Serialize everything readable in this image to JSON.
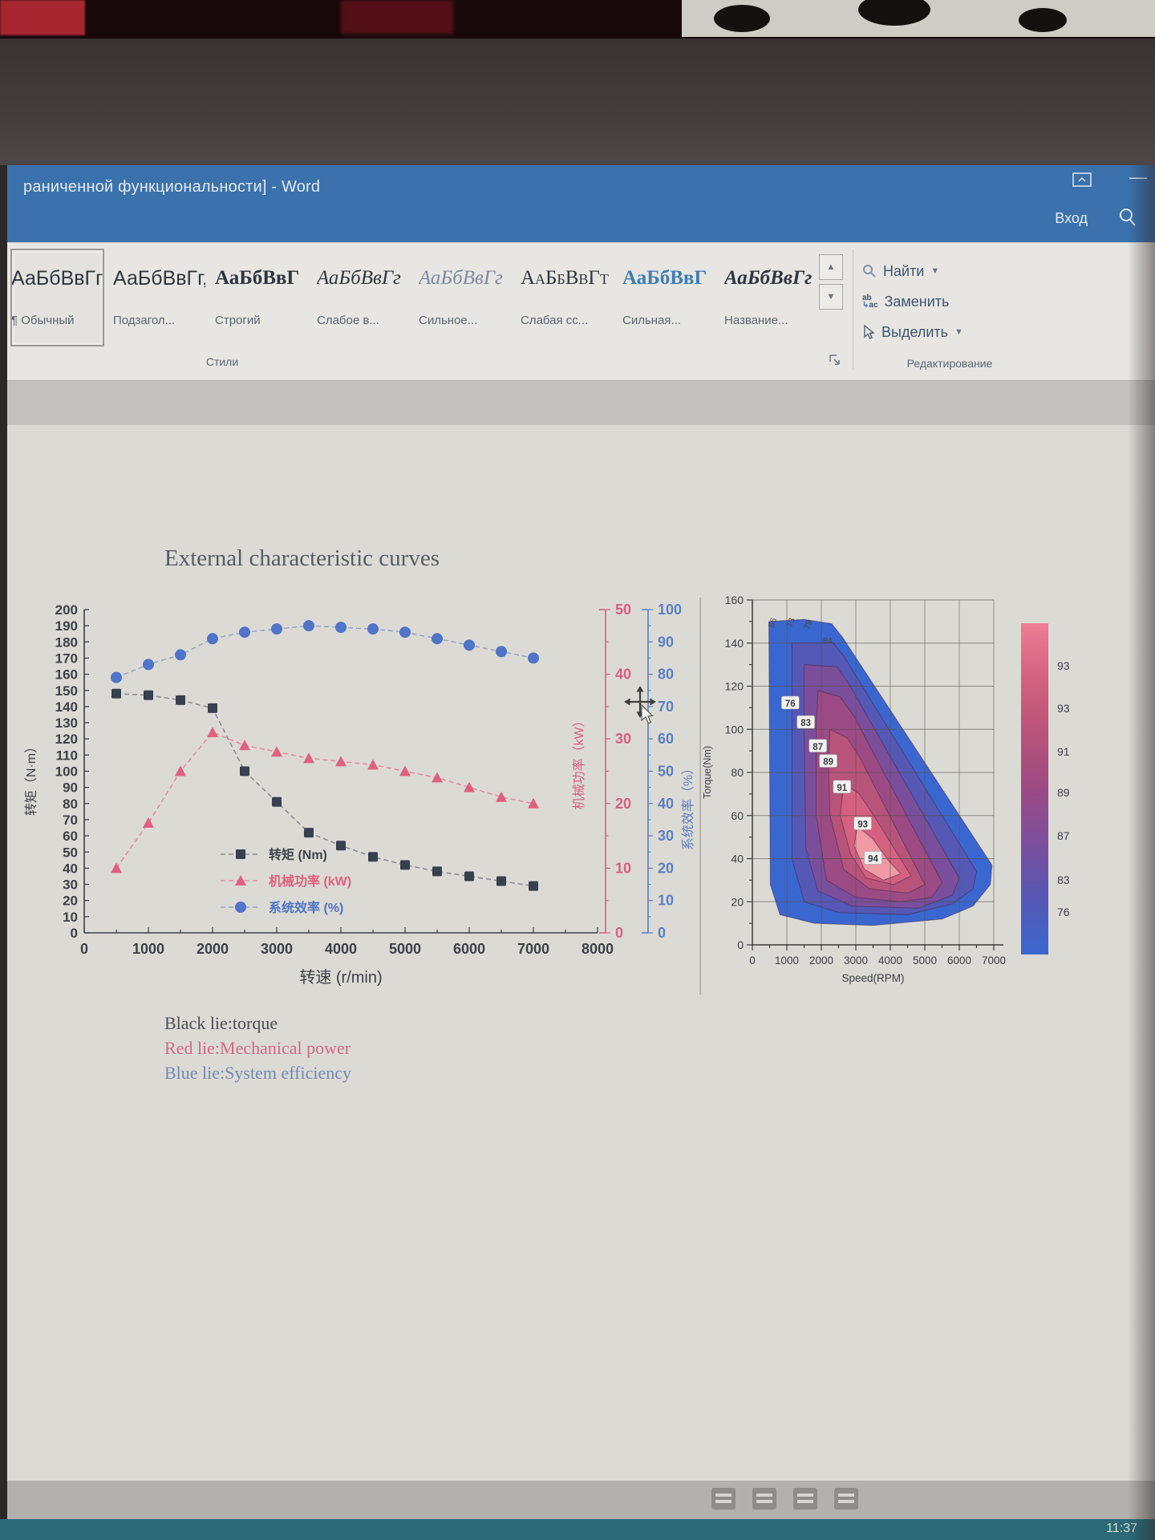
{
  "window": {
    "title": "раниченной функциональности] - Word",
    "signin_label": "Вход",
    "minimize_glyph": "—"
  },
  "ribbon": {
    "styles": {
      "group_label": "Стили",
      "items": [
        {
          "sample": "АаБбВвГг",
          "label": "¶ Обычный",
          "variant": "normal",
          "selected": true
        },
        {
          "sample": "АаБбВвГг,",
          "label": "Подзагол...",
          "variant": "normal",
          "selected": false
        },
        {
          "sample": "АаБбВвГ",
          "label": "Строгий",
          "variant": "bold-serif",
          "selected": false
        },
        {
          "sample": "АаБбВвГг",
          "label": "Слабое в...",
          "variant": "italic-serif",
          "selected": false
        },
        {
          "sample": "АаБбВвГг",
          "label": "Сильное...",
          "variant": "italic-serif-muted",
          "selected": false
        },
        {
          "sample": "АаБбВвГт",
          "label": "Слабая сс...",
          "variant": "smallcaps-serif",
          "selected": false
        },
        {
          "sample": "АаБбВвГ",
          "label": "Сильная...",
          "variant": "caps-blue",
          "selected": false
        },
        {
          "sample": "АаБбВвГг",
          "label": "Название...",
          "variant": "bolditalic-serif",
          "selected": false
        }
      ]
    },
    "editing": {
      "group_label": "Редактирование",
      "find_label": "Найти",
      "replace_label": "Заменить",
      "select_label": "Выделить",
      "replace_icon_top": "ab",
      "replace_icon_bottom": "ac"
    }
  },
  "document": {
    "title": "External characteristic curves",
    "captions": [
      {
        "text": "Black lie:torque",
        "color": "#4a4e55"
      },
      {
        "text": "Red lie:Mechanical power",
        "color": "#d06a85"
      },
      {
        "text": "Blue lie:System efficiency",
        "color": "#7189b2"
      }
    ]
  },
  "taskbar": {
    "time": "11:37",
    "tray": [
      "ime-icon",
      "keyboard-icon",
      "volume-icon",
      "notification-icon"
    ]
  },
  "chart_data": [
    {
      "type": "line",
      "title": "External characteristic curves",
      "x": [
        500,
        1000,
        1500,
        2000,
        2500,
        3000,
        3500,
        4000,
        4500,
        5000,
        5500,
        6000,
        6500,
        7000
      ],
      "xlabel": "转速 (r/min)",
      "xlim": [
        0,
        8000
      ],
      "xtick_step": 1000,
      "grid": false,
      "legend_position": "inside-lower-left",
      "axes": {
        "left": {
          "label": "转矩（N·m）",
          "min": 0,
          "max": 200,
          "tick_step": 10,
          "color": "#3c4147"
        },
        "power": {
          "label": "机械功率（kW）",
          "min": 0,
          "max": 50,
          "tick_step": 10,
          "color": "#d95f7f"
        },
        "eff": {
          "label": "系统效率（%）",
          "min": 0,
          "max": 100,
          "tick_step": 10,
          "color": "#5b7fc4"
        }
      },
      "series": [
        {
          "name": "转矩 (Nm)",
          "axis": "left",
          "marker": "square",
          "color": "#37404e",
          "line_color": "#8a8d92",
          "values": [
            148,
            147,
            144,
            139,
            100,
            81,
            62,
            54,
            47,
            42,
            38,
            35,
            32,
            29
          ]
        },
        {
          "name": "机械功率 (kW)",
          "axis": "power",
          "marker": "triangle",
          "color": "#e0607f",
          "line_color": "#e68ba1",
          "values": [
            10,
            17,
            25,
            31,
            29,
            28,
            27,
            26.5,
            26,
            25,
            24,
            22.5,
            21,
            20
          ]
        },
        {
          "name": "系统效率 (%)",
          "axis": "eff",
          "marker": "circle",
          "color": "#4f74c8",
          "line_color": "#98a5c6",
          "values": [
            79,
            83,
            86,
            91,
            93,
            94,
            95,
            94.5,
            94,
            93,
            91,
            89,
            87,
            85
          ]
        }
      ]
    },
    {
      "type": "heatmap",
      "xlabel": "Speed(RPM)",
      "ylabel": "Torque(Nm)",
      "xlim": [
        0,
        7000
      ],
      "xtick_step": 1000,
      "ylim": [
        0,
        160
      ],
      "ytick_step": 20,
      "grid": true,
      "colorbar": {
        "labels": [
          "93",
          "93",
          "91",
          "89",
          "87",
          "83",
          "76"
        ],
        "colors_top_to_bottom": [
          "#ee7d95",
          "#d4617f",
          "#b85379",
          "#9c4a84",
          "#7b4e9c",
          "#5558b5",
          "#3a67cf"
        ]
      },
      "top_edge_labels": [
        {
          "text": "56",
          "speed": 620,
          "torque": 147
        },
        {
          "text": "73",
          "speed": 1150,
          "torque": 147
        },
        {
          "text": "79",
          "speed": 1650,
          "torque": 146
        },
        {
          "text": "84",
          "speed": 2050,
          "torque": 140
        }
      ],
      "contour_labels": [
        {
          "text": "76",
          "speed": 1100,
          "torque": 112
        },
        {
          "text": "83",
          "speed": 1550,
          "torque": 103
        },
        {
          "text": "87",
          "speed": 1900,
          "torque": 92
        },
        {
          "text": "89",
          "speed": 2200,
          "torque": 85
        },
        {
          "text": "91",
          "speed": 2600,
          "torque": 73
        },
        {
          "text": "93",
          "speed": 3200,
          "torque": 56
        },
        {
          "text": "94",
          "speed": 3500,
          "torque": 40
        }
      ],
      "levels": [
        {
          "value": 76,
          "color": "#3a67cf",
          "points": [
            [
              480,
              150
            ],
            [
              1500,
              151
            ],
            [
              2300,
              149
            ],
            [
              2600,
              143
            ],
            [
              6950,
              37
            ],
            [
              6900,
              28
            ],
            [
              6400,
              18
            ],
            [
              5500,
              12
            ],
            [
              3500,
              9
            ],
            [
              1800,
              10
            ],
            [
              800,
              14
            ],
            [
              520,
              28
            ]
          ]
        },
        {
          "value": 83,
          "color": "#5558b5",
          "points": [
            [
              1150,
              140
            ],
            [
              2350,
              140
            ],
            [
              2650,
              134
            ],
            [
              6500,
              34
            ],
            [
              6400,
              26
            ],
            [
              5800,
              19
            ],
            [
              4500,
              14
            ],
            [
              2500,
              15
            ],
            [
              1500,
              20
            ],
            [
              1150,
              40
            ]
          ]
        },
        {
          "value": 87,
          "color": "#7b4e9c",
          "points": [
            [
              1500,
              130
            ],
            [
              2450,
              129
            ],
            [
              2800,
              121
            ],
            [
              6000,
              31
            ],
            [
              5800,
              23
            ],
            [
              4800,
              17
            ],
            [
              2900,
              18
            ],
            [
              1900,
              25
            ],
            [
              1550,
              45
            ],
            [
              1500,
              100
            ]
          ]
        },
        {
          "value": 89,
          "color": "#9c4a84",
          "points": [
            [
              1900,
              118
            ],
            [
              2550,
              115
            ],
            [
              2950,
              106
            ],
            [
              5500,
              29
            ],
            [
              5200,
              22
            ],
            [
              4300,
              20
            ],
            [
              3000,
              22
            ],
            [
              2150,
              30
            ],
            [
              1850,
              60
            ],
            [
              1850,
              100
            ]
          ]
        },
        {
          "value": 91,
          "color": "#b85379",
          "points": [
            [
              2250,
              100
            ],
            [
              2750,
              96
            ],
            [
              3150,
              86
            ],
            [
              5000,
              28
            ],
            [
              4500,
              24
            ],
            [
              3400,
              26
            ],
            [
              2650,
              35
            ],
            [
              2250,
              60
            ],
            [
              2200,
              85
            ]
          ]
        },
        {
          "value": 93,
          "color": "#d4617f",
          "points": [
            [
              2650,
              75
            ],
            [
              3100,
              70
            ],
            [
              3600,
              58
            ],
            [
              4600,
              32
            ],
            [
              4100,
              28
            ],
            [
              3300,
              31
            ],
            [
              2850,
              42
            ],
            [
              2550,
              60
            ]
          ]
        },
        {
          "value": 94,
          "color": "#f09aa5",
          "points": [
            [
              3050,
              55
            ],
            [
              3500,
              49
            ],
            [
              3950,
              39
            ],
            [
              4300,
              33
            ],
            [
              3800,
              30
            ],
            [
              3250,
              35
            ],
            [
              2950,
              46
            ]
          ]
        }
      ]
    }
  ]
}
